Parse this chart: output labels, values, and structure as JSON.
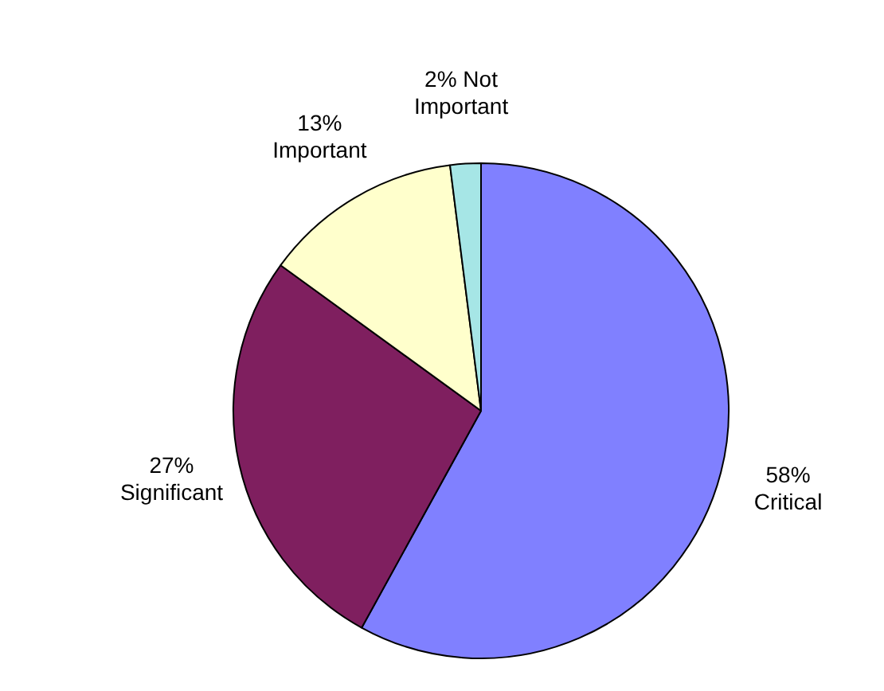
{
  "chart_data": {
    "type": "pie",
    "categories": [
      "Critical",
      "Significant",
      "Important",
      "Not Important"
    ],
    "values": [
      58,
      27,
      13,
      2
    ],
    "value_labels": [
      "58%",
      "27%",
      "13%",
      "2%"
    ],
    "colors": [
      "#8080ff",
      "#7f1f5f",
      "#ffffcc",
      "#a6e6e6"
    ],
    "legend": false
  }
}
